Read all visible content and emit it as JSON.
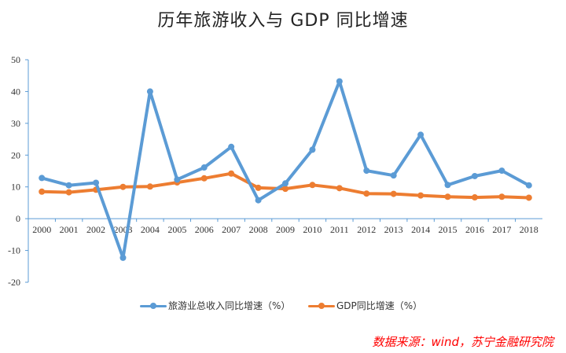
{
  "title": "历年旅游收入与 GDP 同比增速",
  "source": "数据来源：wind，苏宁金融研究院",
  "colors": {
    "series1": "#5b9bd5",
    "series2": "#ed7d31",
    "axis": "#5b9bd5"
  },
  "chart_data": {
    "type": "line",
    "title": "历年旅游收入与 GDP 同比增速",
    "xlabel": "",
    "ylabel": "",
    "ylim": [
      -20,
      50
    ],
    "yticks": [
      -20,
      -10,
      0,
      10,
      20,
      30,
      40,
      50
    ],
    "grid": false,
    "legend_position": "bottom",
    "x": [
      "2000",
      "2001",
      "2002",
      "2003",
      "2004",
      "2005",
      "2006",
      "2007",
      "2008",
      "2009",
      "2010",
      "2011",
      "2012",
      "2013",
      "2014",
      "2015",
      "2016",
      "2017",
      "2018"
    ],
    "series": [
      {
        "name": "旅游业总收入同比增速（%）",
        "values": [
          12.8,
          10.5,
          11.3,
          -12.3,
          40.0,
          12.3,
          16.1,
          22.6,
          5.8,
          11.1,
          21.7,
          43.2,
          15.1,
          13.6,
          26.4,
          10.6,
          13.4,
          15.1,
          10.5
        ]
      },
      {
        "name": "GDP同比增速（%）",
        "values": [
          8.5,
          8.3,
          9.1,
          10.0,
          10.1,
          11.4,
          12.7,
          14.2,
          9.7,
          9.4,
          10.6,
          9.6,
          7.9,
          7.8,
          7.3,
          6.9,
          6.7,
          6.9,
          6.6
        ]
      }
    ]
  }
}
